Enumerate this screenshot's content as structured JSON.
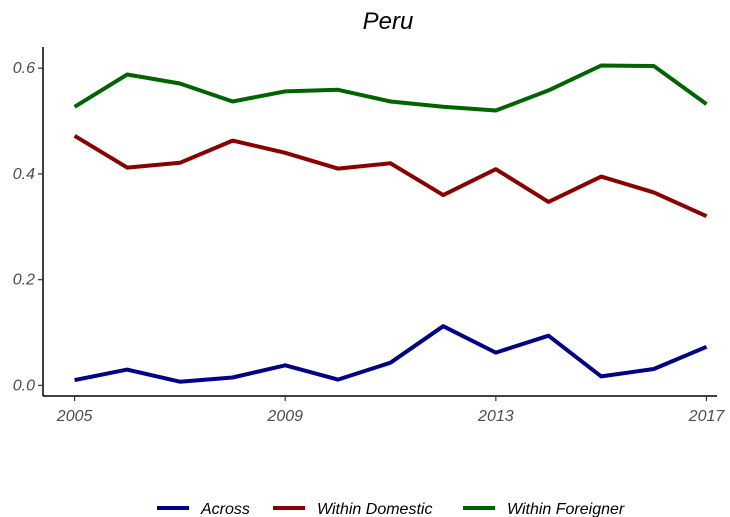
{
  "chart_data": {
    "type": "line",
    "title": "Peru",
    "xlabel": "",
    "ylabel": "",
    "x": [
      2005,
      2006,
      2007,
      2008,
      2009,
      2010,
      2011,
      2012,
      2013,
      2014,
      2015,
      2016,
      2017
    ],
    "xlim": [
      2004.4,
      2017.2
    ],
    "ylim": [
      -0.02,
      0.64
    ],
    "x_ticks": [
      2005,
      2009,
      2013,
      2017
    ],
    "y_ticks": [
      0.0,
      0.2,
      0.4,
      0.6
    ],
    "x_tick_labels": [
      "2005",
      "2009",
      "2013",
      "2017"
    ],
    "y_tick_labels": [
      "0.0",
      "0.2",
      "0.4",
      "0.6"
    ],
    "grid": false,
    "legend_position": "bottom",
    "series": [
      {
        "name": "Across",
        "color": "#00008B",
        "values": [
          0.01,
          0.03,
          0.007,
          0.015,
          0.038,
          0.011,
          0.043,
          0.112,
          0.062,
          0.094,
          0.017,
          0.031,
          0.073
        ]
      },
      {
        "name": "Within Domestic",
        "color": "#8B0000",
        "values": [
          0.472,
          0.412,
          0.421,
          0.463,
          0.44,
          0.41,
          0.42,
          0.36,
          0.409,
          0.347,
          0.395,
          0.365,
          0.32
        ]
      },
      {
        "name": "Within Foreigner",
        "color": "#006400",
        "values": [
          0.527,
          0.588,
          0.571,
          0.537,
          0.556,
          0.559,
          0.537,
          0.527,
          0.52,
          0.558,
          0.605,
          0.604,
          0.532
        ]
      }
    ]
  }
}
